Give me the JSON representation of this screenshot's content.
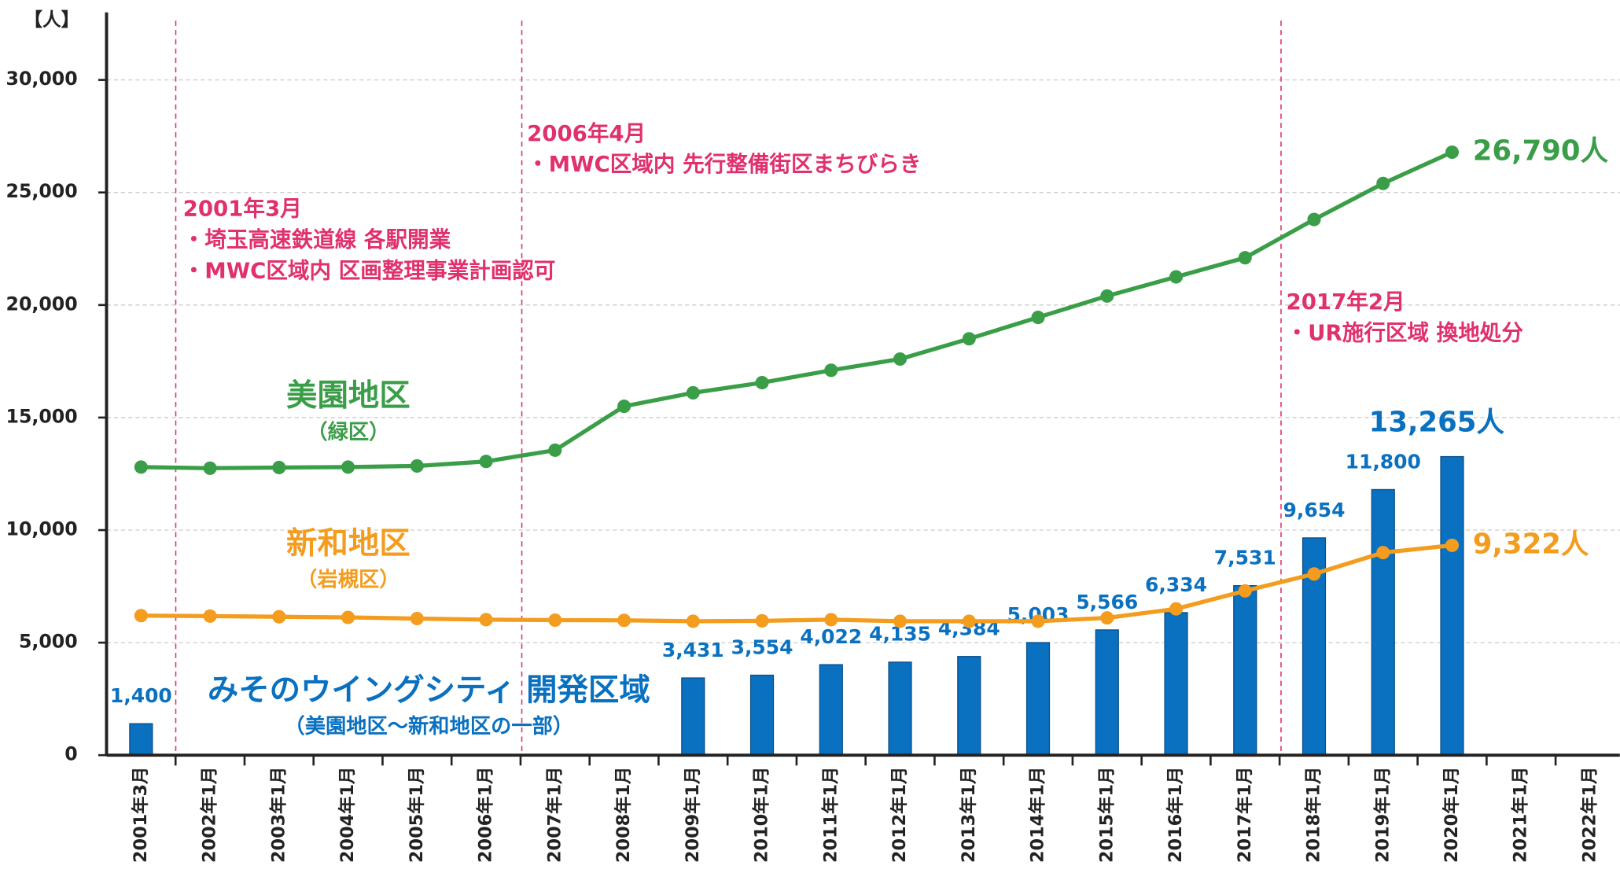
{
  "chart_data": {
    "type": "combo",
    "unit_label": "【人】",
    "categories": [
      "2001年3月",
      "2002年1月",
      "2003年1月",
      "2004年1月",
      "2005年1月",
      "2006年1月",
      "2007年1月",
      "2008年1月",
      "2009年1月",
      "2010年1月",
      "2011年1月",
      "2012年1月",
      "2013年1月",
      "2014年1月",
      "2015年1月",
      "2016年1月",
      "2017年1月",
      "2018年1月",
      "2019年1月",
      "2020年1月",
      "2021年1月",
      "2022年1月"
    ],
    "ylim": [
      0,
      33000
    ],
    "yticks": [
      0,
      {
        "value": 5000,
        "label": "5,000"
      },
      {
        "value": 10000,
        "label": "10,000"
      },
      {
        "value": 15000,
        "label": "15,000"
      },
      {
        "value": 20000,
        "label": "20,000"
      },
      {
        "value": 25000,
        "label": "25,000"
      },
      {
        "value": 30000,
        "label": "30,000"
      }
    ],
    "grid": true,
    "series": [
      {
        "name": "みそのウイングシティ 開発区域",
        "sublabel": "（美園地区～新和地区の一部）",
        "type": "bar",
        "color": "#0a70c0",
        "values": [
          1400,
          null,
          null,
          null,
          null,
          null,
          null,
          null,
          3431,
          3554,
          4022,
          4135,
          4384,
          5003,
          5566,
          6334,
          7531,
          9654,
          11800,
          13265,
          null,
          null
        ],
        "value_labels": [
          "1,400",
          null,
          null,
          null,
          null,
          null,
          null,
          null,
          "3,431",
          "3,554",
          "4,022",
          "4,135",
          "4,384",
          "5,003",
          "5,566",
          "6,334",
          "7,531",
          "9,654",
          "11,800",
          "13,265人",
          null,
          null
        ]
      },
      {
        "name": "美園地区",
        "sublabel": "（緑区）",
        "type": "line",
        "color": "#3a9e48",
        "values": [
          12800,
          12750,
          12780,
          12800,
          12850,
          13050,
          13550,
          15500,
          16100,
          16550,
          17100,
          17600,
          18500,
          19450,
          20400,
          21250,
          22100,
          23800,
          25400,
          26790,
          null,
          null
        ],
        "value_labels": [
          null,
          null,
          null,
          null,
          null,
          null,
          null,
          null,
          null,
          null,
          null,
          null,
          null,
          null,
          null,
          null,
          null,
          null,
          null,
          "26,790人",
          null,
          null
        ]
      },
      {
        "name": "新和地区",
        "sublabel": "（岩槻区）",
        "type": "line",
        "color": "#f39c1e",
        "values": [
          6200,
          6180,
          6150,
          6120,
          6070,
          6020,
          6000,
          5990,
          5950,
          5970,
          6020,
          5950,
          5950,
          5950,
          6100,
          6500,
          7300,
          8050,
          9000,
          9322,
          null,
          null
        ],
        "value_labels": [
          null,
          null,
          null,
          null,
          null,
          null,
          null,
          null,
          null,
          null,
          null,
          null,
          null,
          null,
          null,
          null,
          null,
          null,
          null,
          "9,322人",
          null,
          null
        ]
      }
    ],
    "annotations": [
      {
        "lines": [
          "2001年3月",
          "・埼玉高速鉄道線 各駅開業",
          "・MWC区域内 区画整理事業計画認可"
        ]
      },
      {
        "lines": [
          "2006年4月",
          "・MWC区域内 先行整備街区まちびらき"
        ]
      },
      {
        "lines": [
          "2017年2月",
          "・UR施行区域 換地処分"
        ]
      }
    ]
  }
}
